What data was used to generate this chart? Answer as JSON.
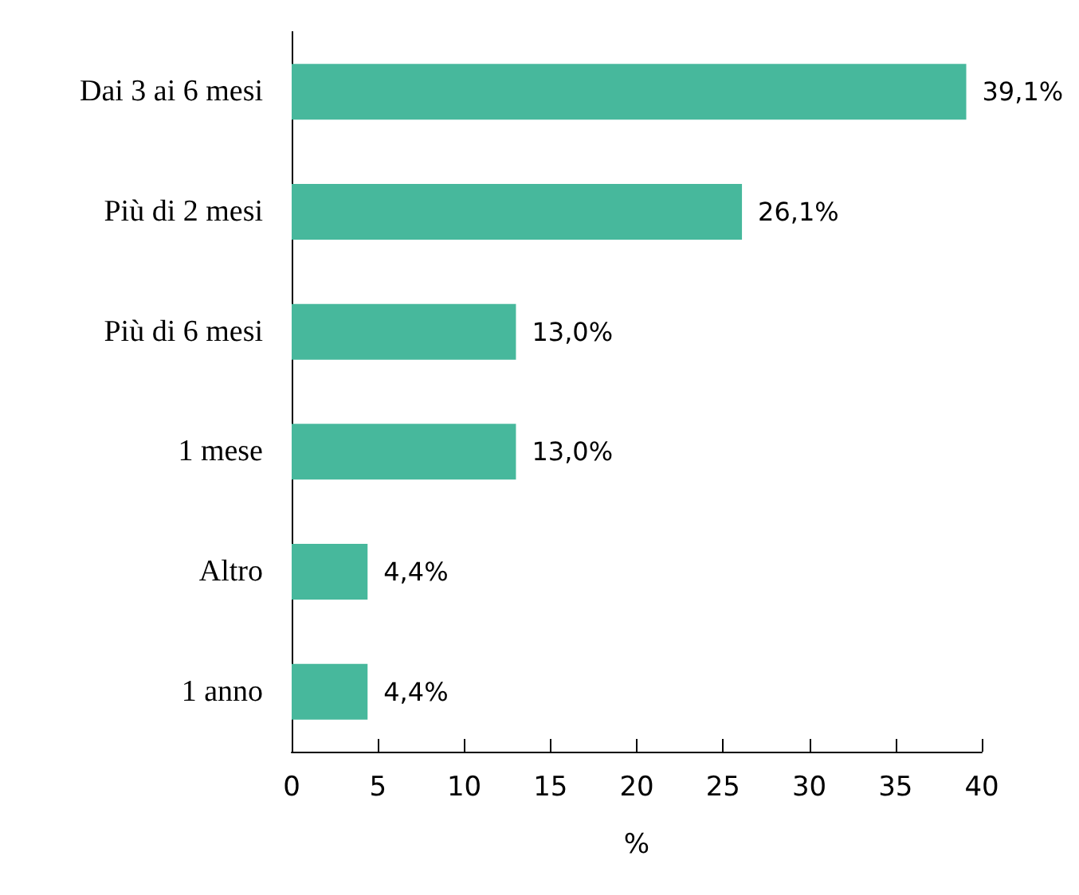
{
  "chart_data": {
    "type": "bar",
    "orientation": "horizontal",
    "categories": [
      "Dai 3 ai 6 mesi",
      "Più di 2 mesi",
      "Più di 6 mesi",
      "1 mese",
      "Altro",
      "1 anno"
    ],
    "values": [
      39.1,
      26.1,
      13.0,
      13.0,
      4.4,
      4.4
    ],
    "value_labels": [
      "39,1%",
      "26,1%",
      "13,0%",
      "13,0%",
      "4,4%",
      "4,4%"
    ],
    "color": "#47b89c",
    "xlim": [
      0,
      40
    ],
    "xticks": [
      0,
      5,
      10,
      15,
      20,
      25,
      30,
      35,
      40
    ],
    "xlabel": "%",
    "grid": false
  }
}
